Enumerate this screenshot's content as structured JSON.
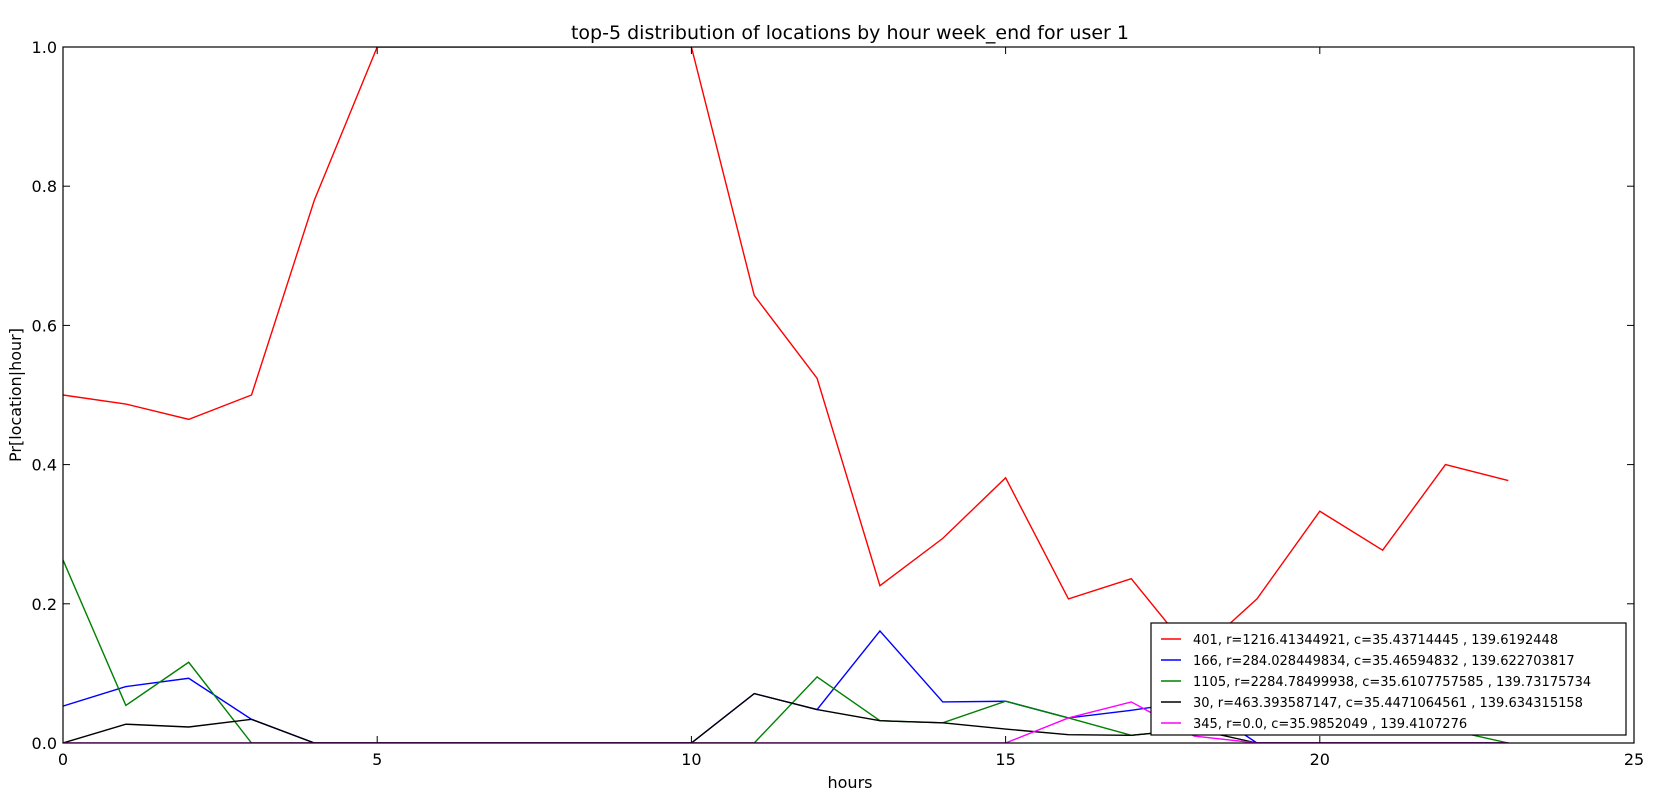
{
  "chart_data": {
    "type": "line",
    "title": "top-5 distribution of locations by hour week_end for user 1",
    "xlabel": "hours",
    "ylabel": "Pr[location|hour]",
    "xlim": [
      0,
      25
    ],
    "ylim": [
      0,
      1.0
    ],
    "xticks": [
      "0",
      "5",
      "10",
      "15",
      "20",
      "25"
    ],
    "yticks": [
      "0.0",
      "0.2",
      "0.4",
      "0.6",
      "0.8",
      "1.0"
    ],
    "grid": false,
    "legend_position": "lower-right",
    "x": [
      0,
      1,
      2,
      3,
      4,
      5,
      6,
      7,
      8,
      9,
      10,
      11,
      12,
      13,
      14,
      15,
      16,
      17,
      18,
      19,
      20,
      21,
      22,
      23
    ],
    "series": [
      {
        "name": "401, r=1216.41344921, c=35.43714445 , 139.6192448",
        "color": "#ff0000",
        "values": [
          0.5,
          0.487,
          0.465,
          0.5,
          0.78,
          1.0,
          1.0,
          1.0,
          1.0,
          1.0,
          1.0,
          0.643,
          0.524,
          0.226,
          0.294,
          0.381,
          0.207,
          0.236,
          0.125,
          0.207,
          0.333,
          0.277,
          0.4,
          0.377
        ]
      },
      {
        "name": "166, r=284.028449834, c=35.46594832 , 139.622703817",
        "color": "#0000ff",
        "values": [
          0.053,
          0.081,
          0.093,
          0.034,
          0.0,
          0.0,
          0.0,
          0.0,
          0.0,
          0.0,
          0.0,
          0.071,
          0.048,
          0.161,
          0.059,
          0.06,
          0.036,
          0.047,
          0.06,
          0.0,
          0.0,
          0.0,
          0.0,
          0.0
        ]
      },
      {
        "name": "1105, r=2284.78499938, c=35.6107757585 , 139.73175734",
        "color": "#008000",
        "values": [
          0.263,
          0.054,
          0.116,
          0.0,
          0.0,
          0.0,
          0.0,
          0.0,
          0.0,
          0.0,
          0.0,
          0.0,
          0.095,
          0.032,
          0.029,
          0.06,
          0.036,
          0.011,
          0.02,
          0.02,
          0.02,
          0.02,
          0.02,
          0.0
        ]
      },
      {
        "name": "30, r=463.393587147, c=35.4471064561 , 139.634315158",
        "color": "#000000",
        "values": [
          0.0,
          0.027,
          0.023,
          0.034,
          0.0,
          0.0,
          0.0,
          0.0,
          0.0,
          0.0,
          0.0,
          0.071,
          0.048,
          0.032,
          0.029,
          0.02,
          0.012,
          0.011,
          0.02,
          0.0,
          0.0,
          0.0,
          0.0,
          0.0
        ]
      },
      {
        "name": "345, r=0.0, c=35.9852049 , 139.4107276",
        "color": "#ff00ff",
        "values": [
          0.0,
          0.0,
          0.0,
          0.0,
          0.0,
          0.0,
          0.0,
          0.0,
          0.0,
          0.0,
          0.0,
          0.0,
          0.0,
          0.0,
          0.0,
          0.0,
          0.036,
          0.059,
          0.01,
          0.0,
          0.0,
          0.0,
          0.0,
          0.0
        ]
      }
    ]
  }
}
